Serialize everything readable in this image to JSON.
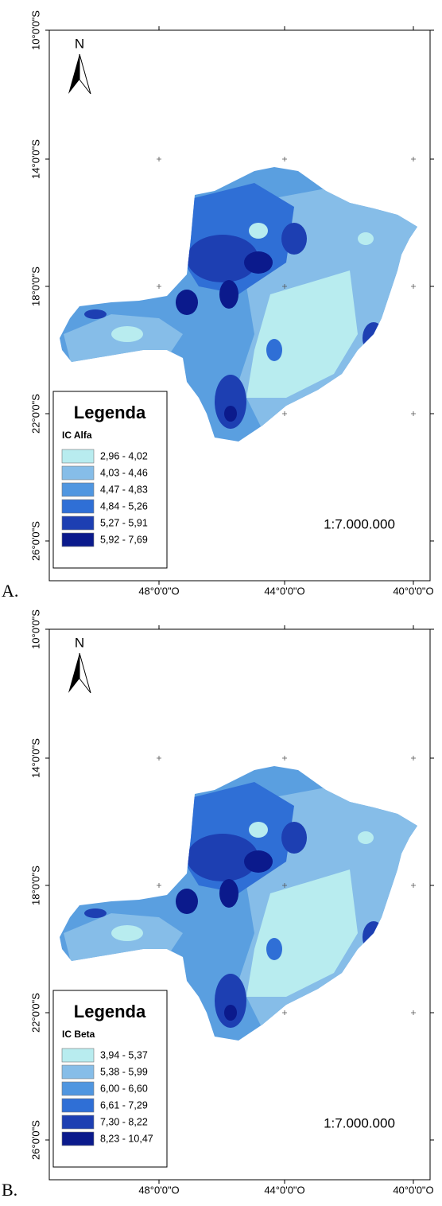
{
  "panels": [
    {
      "label": "A.",
      "north": "N",
      "lat_labels": [
        "10°0'0\"S",
        "14°0'0\"S",
        "18°0'0\"S",
        "22°0'0\"S",
        "26°0'0\"S"
      ],
      "lon_labels": [
        "48°0'0\"O",
        "44°0'0\"O",
        "40°0'0\"O"
      ],
      "legend": {
        "title": "Legenda",
        "subtitle": "IC Alfa",
        "classes": [
          {
            "label": "2,96 - 4,02",
            "color": "#b8ecef"
          },
          {
            "label": "4,03 - 4,46",
            "color": "#86bde8"
          },
          {
            "label": "4,47 - 4,83",
            "color": "#5096e0"
          },
          {
            "label": "4,84 - 5,26",
            "color": "#2f6fd6"
          },
          {
            "label": "5,27 - 5,91",
            "color": "#1d3fb2"
          },
          {
            "label": "5,92 - 7,69",
            "color": "#0b1a8c"
          }
        ]
      },
      "scale": "1:7.000.000"
    },
    {
      "label": "B.",
      "north": "N",
      "lat_labels": [
        "10°0'0\"S",
        "14°0'0\"S",
        "18°0'0\"S",
        "22°0'0\"S",
        "26°0'0\"S"
      ],
      "lon_labels": [
        "48°0'0\"O",
        "44°0'0\"O",
        "40°0'0\"O"
      ],
      "legend": {
        "title": "Legenda",
        "subtitle": "IC Beta",
        "classes": [
          {
            "label": "3,94 - 5,37",
            "color": "#b8ecef"
          },
          {
            "label": "5,38 - 5,99",
            "color": "#86bde8"
          },
          {
            "label": "6,00 - 6,60",
            "color": "#5096e0"
          },
          {
            "label": "6,61 - 7,29",
            "color": "#2f6fd6"
          },
          {
            "label": "7,30 - 8,22",
            "color": "#1d3fb2"
          },
          {
            "label": "8,23 - 10,47",
            "color": "#0b1a8c"
          }
        ]
      },
      "scale": "1:7.000.000"
    }
  ]
}
